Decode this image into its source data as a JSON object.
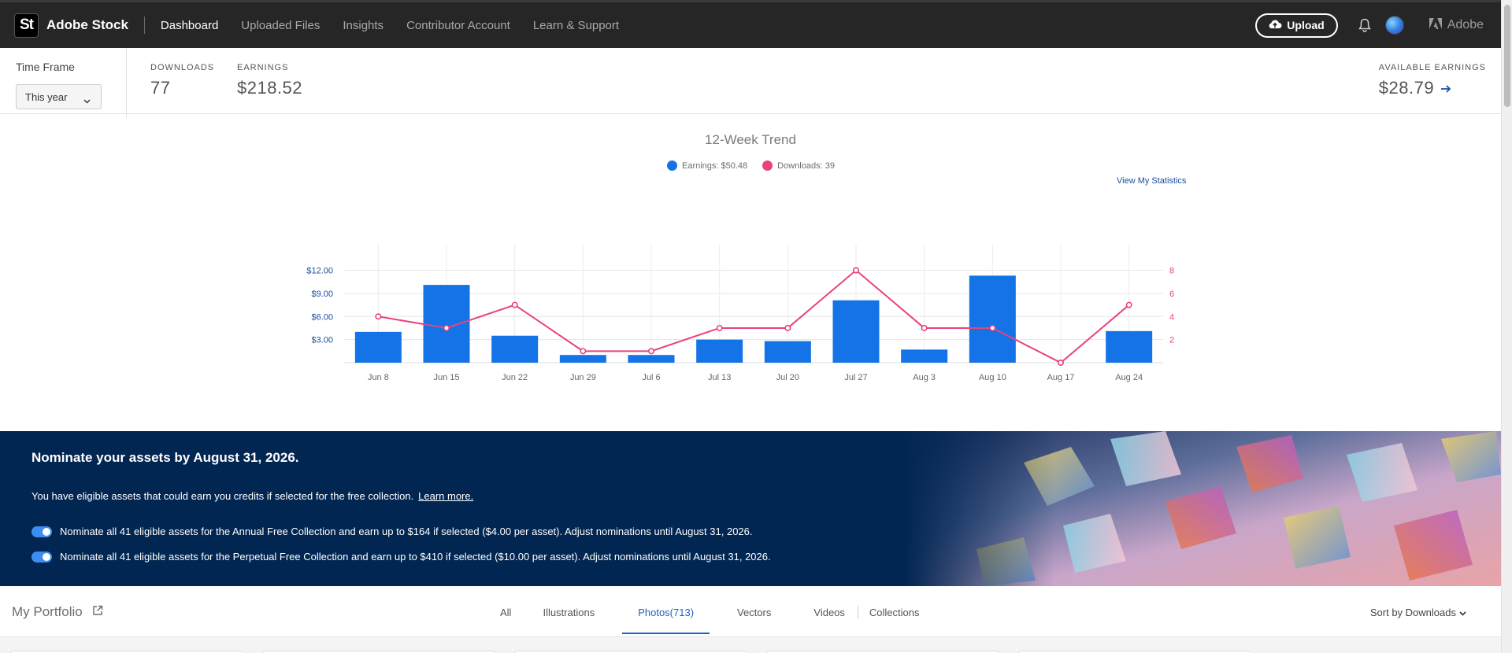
{
  "app": {
    "logo_text": "St",
    "name": "Adobe Stock",
    "nav": [
      "Dashboard",
      "Uploaded Files",
      "Insights",
      "Contributor Account",
      "Learn & Support"
    ],
    "upload_label": "Upload",
    "adobe_label": "Adobe"
  },
  "stats": {
    "timeframe_label": "Time Frame",
    "timeframe_value": "This year",
    "downloads_label": "DOWNLOADS",
    "downloads_value": "77",
    "earnings_label": "EARNINGS",
    "earnings_value": "$218.52",
    "available_label": "AVAILABLE EARNINGS",
    "available_value": "$28.79"
  },
  "trend": {
    "title": "12-Week Trend",
    "earnings_legend": "Earnings: $50.48",
    "downloads_legend": "Downloads: 39",
    "view_stats": "View My Statistics"
  },
  "chart_data": {
    "type": "bar",
    "title": "12-Week Trend",
    "categories": [
      "Jun 8",
      "Jun 15",
      "Jun 22",
      "Jun 29",
      "Jul 6",
      "Jul 13",
      "Jul 20",
      "Jul 27",
      "Aug 3",
      "Aug 10",
      "Aug 17",
      "Aug 24"
    ],
    "series": [
      {
        "name": "Earnings",
        "type": "bar",
        "axis": "left",
        "color": "#1473e6",
        "values": [
          4.0,
          10.1,
          3.5,
          1.0,
          1.0,
          3.0,
          2.8,
          8.1,
          1.7,
          11.3,
          0.0,
          4.1
        ]
      },
      {
        "name": "Downloads",
        "type": "line",
        "axis": "right",
        "color": "#e8437a",
        "values": [
          4,
          3,
          5,
          1,
          1,
          3,
          3,
          8,
          3,
          3,
          0,
          5
        ]
      }
    ],
    "left_axis": {
      "ticks": [
        "$3.00",
        "$6.00",
        "$9.00",
        "$12.00"
      ],
      "tick_values": [
        3,
        6,
        9,
        12
      ],
      "ylim": [
        0,
        14.4
      ]
    },
    "right_axis": {
      "ticks": [
        "2",
        "4",
        "6",
        "8"
      ],
      "tick_values": [
        2,
        4,
        6,
        8
      ],
      "ylim": [
        0,
        9.6
      ]
    },
    "grid": true,
    "legend": "top-center"
  },
  "banner": {
    "title": "Nominate your assets by August 31, 2026.",
    "text": "You have eligible assets that could earn you credits if selected for the free collection.",
    "learn_more": "Learn more.",
    "toggle1": "Nominate all 41 eligible assets for the Annual Free Collection and earn up to $164 if selected ($4.00 per asset). Adjust nominations until August 31, 2026.",
    "toggle2": "Nominate all 41 eligible assets for the Perpetual Free Collection and earn up to $410 if selected ($10.00 per asset). Adjust nominations until August 31, 2026."
  },
  "portfolio": {
    "title": "My Portfolio",
    "tabs": [
      "All",
      "Illustrations",
      "Photos(713)",
      "Vectors",
      "Videos",
      "Collections"
    ],
    "sort_label": "Sort by Downloads"
  },
  "colors": {
    "topbar": "#262626",
    "accent": "#1473e6",
    "downloads": "#e8437a",
    "banner": "#022652"
  }
}
